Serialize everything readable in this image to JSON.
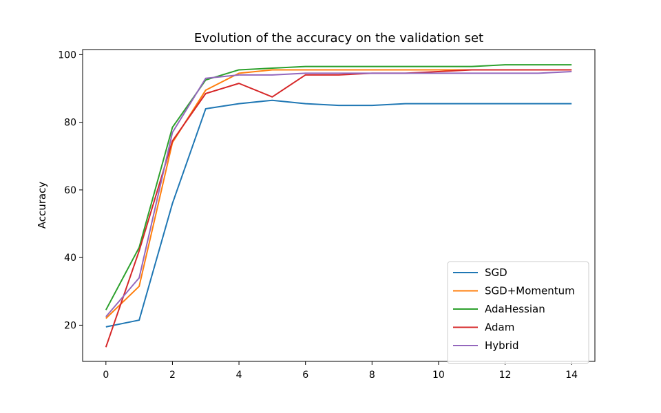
{
  "chart_data": {
    "type": "line",
    "title": "Evolution of the accuracy on the validation set",
    "xlabel": "",
    "ylabel": "Accuracy",
    "x": [
      0,
      1,
      2,
      3,
      4,
      5,
      6,
      7,
      8,
      9,
      10,
      11,
      12,
      13,
      14
    ],
    "xticks": [
      0,
      2,
      4,
      6,
      8,
      10,
      12,
      14
    ],
    "yticks": [
      20,
      40,
      60,
      80,
      100
    ],
    "xlim": [
      -0.7,
      14.7
    ],
    "ylim": [
      9.3,
      101.5
    ],
    "grid": false,
    "legend_position": "lower-right",
    "series": [
      {
        "name": "SGD",
        "color": "#1f77b4",
        "values": [
          19.5,
          21.5,
          56,
          84,
          85.5,
          86.5,
          85.5,
          85,
          85,
          85.5,
          85.5,
          85.5,
          85.5,
          85.5,
          85.5
        ]
      },
      {
        "name": "SGD+Momentum",
        "color": "#ff7f0e",
        "values": [
          22,
          31.5,
          74,
          89.5,
          94.5,
          95.5,
          95.5,
          95.5,
          95.5,
          95.5,
          95.5,
          95.5,
          95.5,
          95.5,
          95.5
        ]
      },
      {
        "name": "AdaHessian",
        "color": "#2ca02c",
        "values": [
          24.5,
          43,
          78.5,
          92.5,
          95.5,
          96,
          96.5,
          96.5,
          96.5,
          96.5,
          96.5,
          96.5,
          97,
          97,
          97
        ]
      },
      {
        "name": "Adam",
        "color": "#d62728",
        "values": [
          13.5,
          42,
          74.5,
          88.5,
          91.5,
          87.5,
          94,
          94,
          94.5,
          94.5,
          95,
          95.5,
          95.5,
          95.5,
          95.5
        ]
      },
      {
        "name": "Hybrid",
        "color": "#9467bd",
        "values": [
          22.5,
          34,
          77,
          93,
          94,
          94,
          94.5,
          94.5,
          94.5,
          94.5,
          94.5,
          94.5,
          94.5,
          94.5,
          95
        ]
      }
    ]
  }
}
